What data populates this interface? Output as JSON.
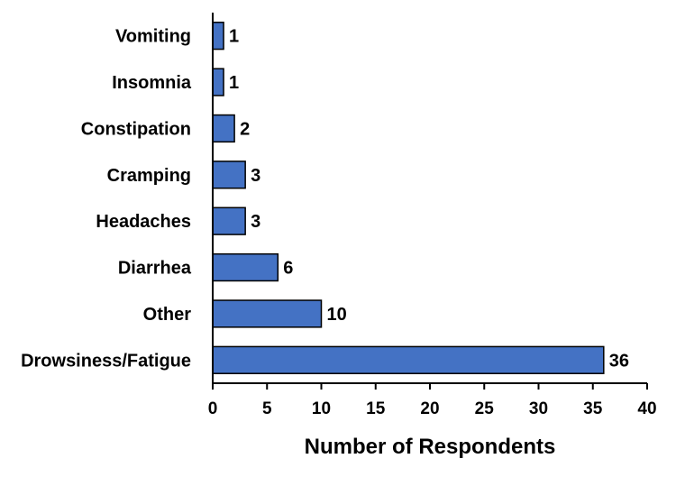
{
  "chart_data": {
    "type": "bar",
    "orientation": "horizontal",
    "categories": [
      "Vomiting",
      "Insomnia",
      "Constipation",
      "Cramping",
      "Headaches",
      "Diarrhea",
      "Other",
      "Drowsiness/Fatigue"
    ],
    "values": [
      1,
      1,
      2,
      3,
      3,
      6,
      10,
      36
    ],
    "data_labels": [
      "1",
      "1",
      "2",
      "3",
      "3",
      "6",
      "10",
      "36"
    ],
    "xlabel": "Number of Respondents",
    "ylabel": "",
    "xlim": [
      0,
      40
    ],
    "xticks": [
      0,
      5,
      10,
      15,
      20,
      25,
      30,
      35,
      40
    ],
    "grid": false,
    "legend": "none",
    "bar_color": "#4472C4",
    "bar_edge_color": "#000000"
  }
}
